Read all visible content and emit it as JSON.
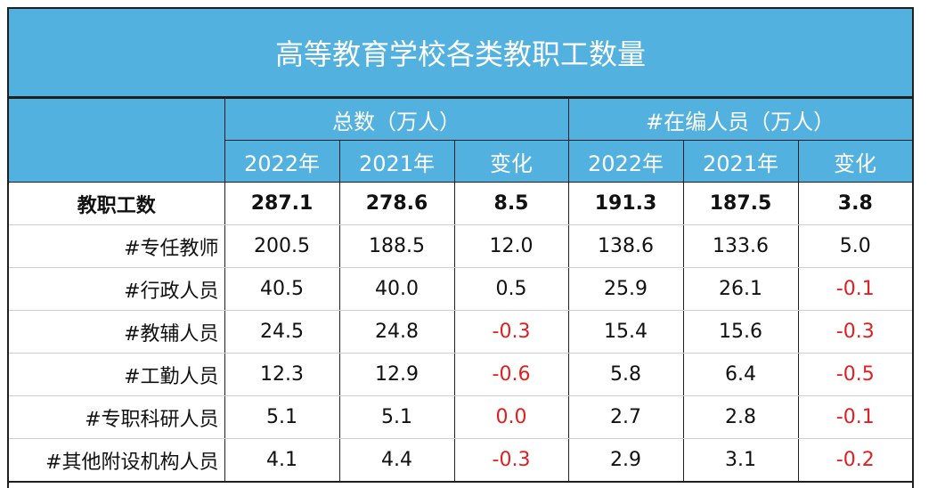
{
  "title": "高等教育学校各类教职工数量",
  "groups": [
    "总数（万人）",
    "#在编人员（万人）"
  ],
  "subheaders": [
    "2022年",
    "2021年",
    "变化",
    "2022年",
    "2021年",
    "变化"
  ],
  "colors": {
    "header_bg": "#52b1de",
    "negative": "#e02020"
  },
  "rows": [
    {
      "label": "教职工数",
      "values": [
        "287.1",
        "278.6",
        "8.5",
        "191.3",
        "187.5",
        "3.8"
      ]
    },
    {
      "label": "#专任教师",
      "values": [
        "200.5",
        "188.5",
        "12.0",
        "138.6",
        "133.6",
        "5.0"
      ]
    },
    {
      "label": "#行政人员",
      "values": [
        "40.5",
        "40.0",
        "0.5",
        "25.9",
        "26.1",
        "-0.1"
      ]
    },
    {
      "label": "#教辅人员",
      "values": [
        "24.5",
        "24.8",
        "-0.3",
        "15.4",
        "15.6",
        "-0.3"
      ]
    },
    {
      "label": "#工勤人员",
      "values": [
        "12.3",
        "12.9",
        "-0.6",
        "5.8",
        "6.4",
        "-0.5"
      ]
    },
    {
      "label": "#专职科研人员",
      "values": [
        "5.1",
        "5.1",
        "0.0",
        "2.7",
        "2.8",
        "-0.1"
      ]
    },
    {
      "label": "#其他附设机构人员",
      "values": [
        "4.1",
        "4.4",
        "-0.3",
        "2.9",
        "3.1",
        "-0.2"
      ]
    }
  ],
  "highlight": {
    "0": [],
    "1": [],
    "2": [
      5
    ],
    "3": [
      2,
      5
    ],
    "4": [
      2,
      5
    ],
    "5": [
      2,
      5
    ],
    "6": [
      2,
      5
    ]
  }
}
